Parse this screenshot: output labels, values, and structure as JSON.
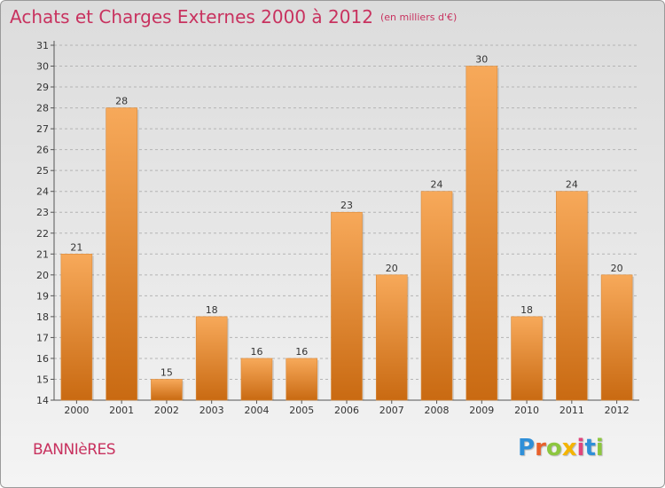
{
  "header": {
    "title": "Achats et Charges Externes 2000 à 2012",
    "unit": "(en milliers d'€)"
  },
  "footer": {
    "place": "BANNIèRES",
    "brand": "Proxiti",
    "brand_letters": [
      {
        "char": "P",
        "color": "#2f8fd8"
      },
      {
        "char": "r",
        "color": "#e8612c"
      },
      {
        "char": "o",
        "color": "#8cc63f"
      },
      {
        "char": "x",
        "color": "#f4b400"
      },
      {
        "char": "i",
        "color": "#e0457b"
      },
      {
        "char": "t",
        "color": "#2f8fd8"
      },
      {
        "char": "i",
        "color": "#8cc63f"
      }
    ]
  },
  "colors": {
    "bar_top": "#f7a95a",
    "bar_bottom": "#c96a12",
    "grid": "#b4b4b4",
    "title": "#c8325f"
  },
  "chart_data": {
    "type": "bar",
    "title": "Achats et Charges Externes 2000 à 2012",
    "subtitle": "(en milliers d'€)",
    "categories": [
      "2000",
      "2001",
      "2002",
      "2003",
      "2004",
      "2005",
      "2006",
      "2007",
      "2008",
      "2009",
      "2010",
      "2011",
      "2012"
    ],
    "values": [
      21,
      28,
      15,
      18,
      16,
      16,
      23,
      20,
      24,
      30,
      18,
      24,
      20
    ],
    "ylim": [
      14,
      31
    ],
    "yticks": [
      14,
      15,
      16,
      17,
      18,
      19,
      20,
      21,
      22,
      23,
      24,
      25,
      26,
      27,
      28,
      29,
      30,
      31
    ],
    "grid": true
  }
}
